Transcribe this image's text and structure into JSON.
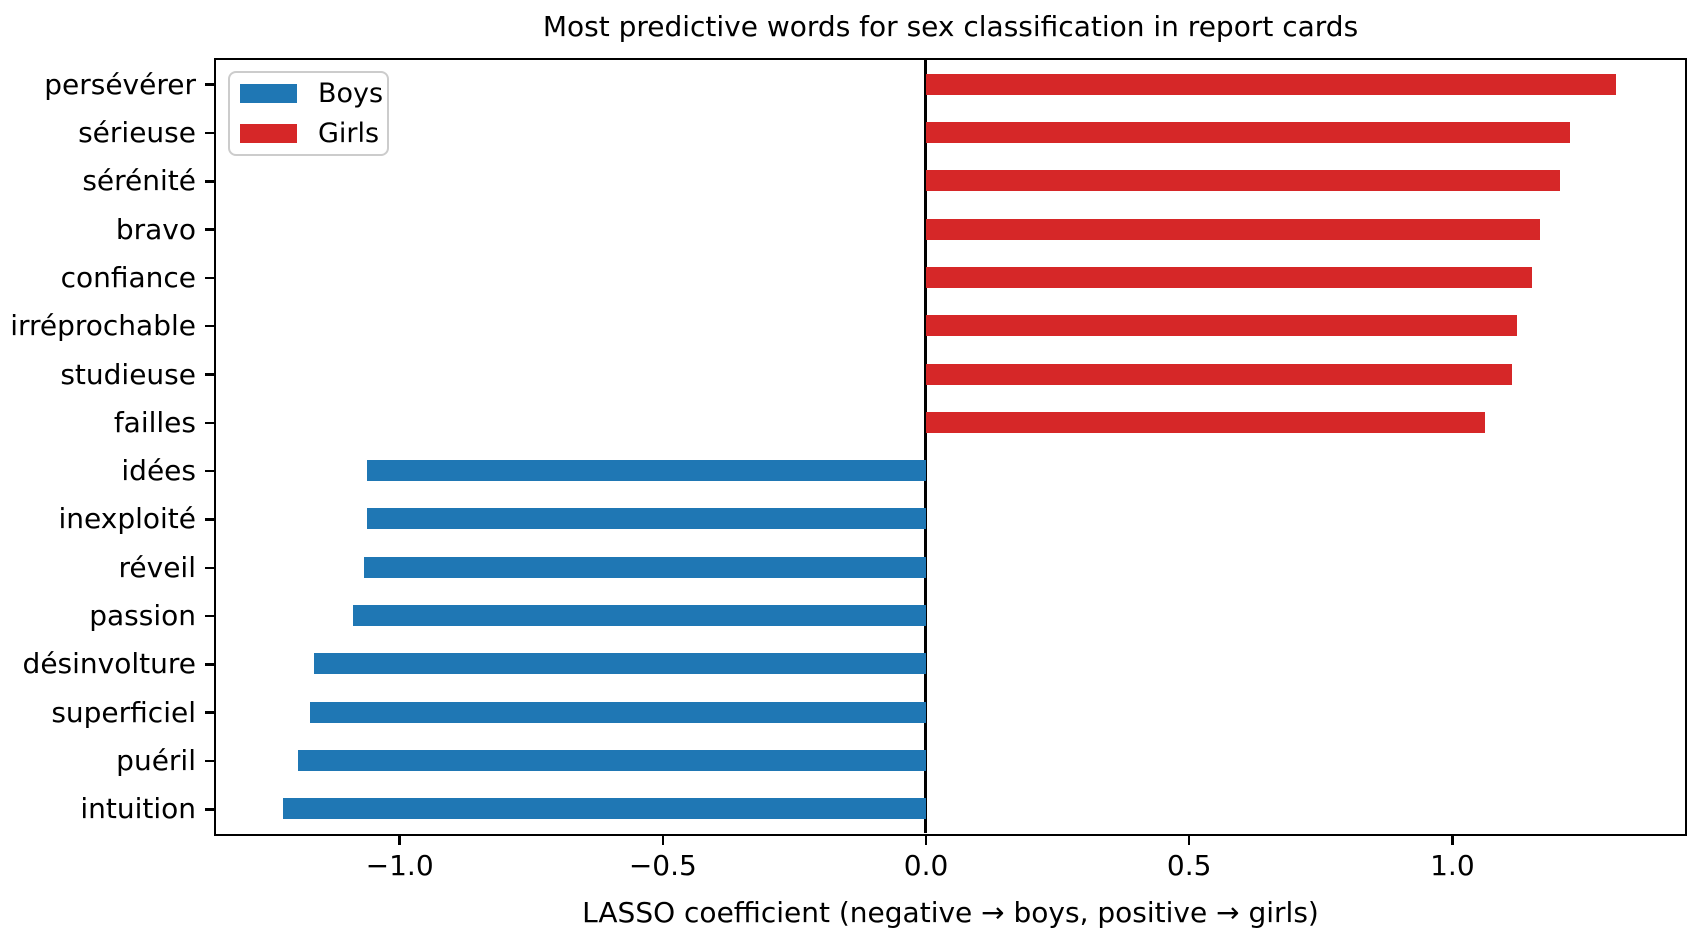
{
  "figure": {
    "background": "#ffffff",
    "text_color": "#000000",
    "axis_color": "#000000"
  },
  "chart_data": {
    "type": "bar",
    "orientation": "horizontal",
    "title": "Most predictive words for sex classification in report cards",
    "xlabel": "LASSO coefficient (negative → boys, positive → girls)",
    "xlim": [
      -1.348,
      1.441
    ],
    "grid": false,
    "zero_line": {
      "shown": true,
      "color": "#000000"
    },
    "legend": {
      "position": "upper left",
      "entries": [
        {
          "label": "Boys",
          "color": "#1f77b4"
        },
        {
          "label": "Girls",
          "color": "#d62728"
        }
      ]
    },
    "groups": {
      "boys": {
        "label": "Boys",
        "color": "#1f77b4"
      },
      "girls": {
        "label": "Girls",
        "color": "#d62728"
      }
    },
    "x_ticks": [
      {
        "value": -1.0,
        "label": "−1.0"
      },
      {
        "value": -0.5,
        "label": "−0.5"
      },
      {
        "value": 0.0,
        "label": "0.0"
      },
      {
        "value": 0.5,
        "label": "0.5"
      },
      {
        "value": 1.0,
        "label": "1.0"
      }
    ],
    "bars": [
      {
        "label": "persévérer",
        "value": 1.312,
        "group": "girls"
      },
      {
        "label": "sérieuse",
        "value": 1.224,
        "group": "girls"
      },
      {
        "label": "sérénité",
        "value": 1.205,
        "group": "girls"
      },
      {
        "label": "bravo",
        "value": 1.167,
        "group": "girls"
      },
      {
        "label": "confiance",
        "value": 1.152,
        "group": "girls"
      },
      {
        "label": "irréprochable",
        "value": 1.123,
        "group": "girls"
      },
      {
        "label": "studieuse",
        "value": 1.114,
        "group": "girls"
      },
      {
        "label": "failles",
        "value": 1.063,
        "group": "girls"
      },
      {
        "label": "idées",
        "value": -1.061,
        "group": "boys"
      },
      {
        "label": "inexploité",
        "value": -1.062,
        "group": "boys"
      },
      {
        "label": "réveil",
        "value": -1.066,
        "group": "boys"
      },
      {
        "label": "passion",
        "value": -1.087,
        "group": "boys"
      },
      {
        "label": "désinvolture",
        "value": -1.161,
        "group": "boys"
      },
      {
        "label": "superficiel",
        "value": -1.169,
        "group": "boys"
      },
      {
        "label": "puéril",
        "value": -1.193,
        "group": "boys"
      },
      {
        "label": "intuition",
        "value": -1.22,
        "group": "boys"
      }
    ]
  }
}
